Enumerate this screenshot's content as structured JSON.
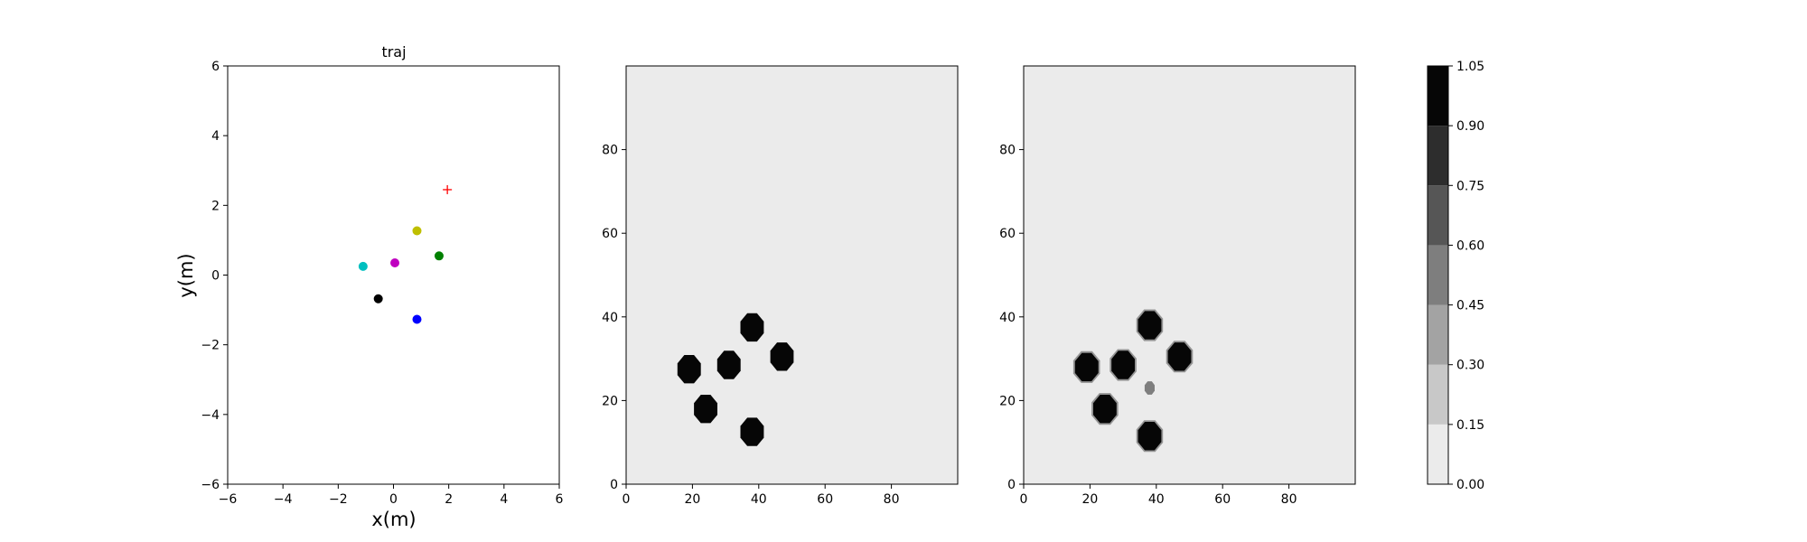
{
  "chart_data": [
    {
      "type": "scatter",
      "title": "traj",
      "xlabel": "x(m)",
      "ylabel": "y(m)",
      "xlim": [
        -6,
        6
      ],
      "ylim": [
        -6,
        6
      ],
      "xticks": [
        "−6",
        "−4",
        "−2",
        "0",
        "2",
        "4",
        "6"
      ],
      "yticks": [
        "−6",
        "−4",
        "−2",
        "0",
        "2",
        "4",
        "6"
      ],
      "points": [
        {
          "x": -1.1,
          "y": 0.25,
          "color": "#00bfbf"
        },
        {
          "x": 0.05,
          "y": 0.35,
          "color": "#bf00bf"
        },
        {
          "x": 0.85,
          "y": 1.27,
          "color": "#bfbf00"
        },
        {
          "x": 1.65,
          "y": 0.55,
          "color": "#008000"
        },
        {
          "x": -0.55,
          "y": -0.68,
          "color": "#000000"
        },
        {
          "x": 0.85,
          "y": -1.27,
          "color": "#0000ff"
        }
      ],
      "target": {
        "x": 1.95,
        "y": 2.45,
        "color": "#ff0000",
        "marker": "+"
      }
    },
    {
      "type": "heatmap",
      "xlim": [
        0,
        100
      ],
      "ylim": [
        0,
        100
      ],
      "xticks": [
        "0",
        "20",
        "40",
        "60",
        "80"
      ],
      "yticks": [
        "0",
        "20",
        "40",
        "60",
        "80"
      ],
      "background_level": 0.0,
      "blobs": [
        {
          "x": 19,
          "y": 27.5,
          "value": 1.0
        },
        {
          "x": 31,
          "y": 28.5,
          "value": 1.0
        },
        {
          "x": 38,
          "y": 37.5,
          "value": 1.0
        },
        {
          "x": 47,
          "y": 30.5,
          "value": 1.0
        },
        {
          "x": 24,
          "y": 18,
          "value": 1.0
        },
        {
          "x": 38,
          "y": 12.5,
          "value": 1.0
        }
      ]
    },
    {
      "type": "heatmap",
      "xlim": [
        0,
        100
      ],
      "ylim": [
        0,
        100
      ],
      "xticks": [
        "0",
        "20",
        "40",
        "60",
        "80"
      ],
      "yticks": [
        "0",
        "20",
        "40",
        "60",
        "80"
      ],
      "background_level": 0.0,
      "blobs": [
        {
          "x": 19,
          "y": 28,
          "value": 1.0
        },
        {
          "x": 30,
          "y": 28.5,
          "value": 1.0
        },
        {
          "x": 38,
          "y": 38,
          "value": 1.0
        },
        {
          "x": 47,
          "y": 30.5,
          "value": 1.0
        },
        {
          "x": 24.5,
          "y": 18,
          "value": 1.0
        },
        {
          "x": 38,
          "y": 11.5,
          "value": 1.0
        },
        {
          "x": 38,
          "y": 23,
          "value": 0.45
        }
      ]
    }
  ],
  "colorbar": {
    "levels": [
      "0.00",
      "0.15",
      "0.30",
      "0.45",
      "0.60",
      "0.75",
      "0.90",
      "1.05"
    ],
    "colors": [
      "#ebebeb",
      "#c8c8c8",
      "#a3a3a3",
      "#7e7e7e",
      "#565656",
      "#2d2d2d",
      "#060606"
    ]
  }
}
